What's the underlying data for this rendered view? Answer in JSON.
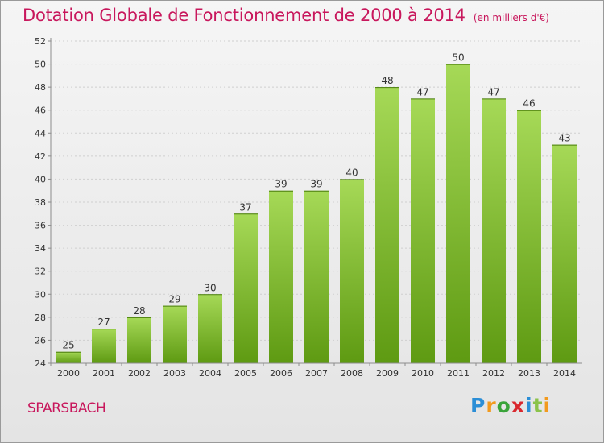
{
  "header": {
    "title": "Dotation Globale de Fonctionnement de 2000 à 2014",
    "subtitle": "(en milliers d'€)"
  },
  "commune": "SPARSBACH",
  "logo": {
    "text": "Proxiti",
    "letters": [
      {
        "char": "P",
        "color": "#2b8ed6"
      },
      {
        "char": "r",
        "color": "#f29a1d"
      },
      {
        "char": "o",
        "color": "#3aa43a"
      },
      {
        "char": "x",
        "color": "#d9272e"
      },
      {
        "char": "i",
        "color": "#2b8ed6"
      },
      {
        "char": "t",
        "color": "#8bc34a"
      },
      {
        "char": "i",
        "color": "#f29a1d"
      }
    ]
  },
  "colors": {
    "accent": "#c8175c",
    "bar_top": "#a6d957",
    "bar_bottom": "#5e9a12",
    "grid": "#cfcfcf",
    "axis": "#8c8c8c",
    "text": "#333333"
  },
  "chart_data": {
    "type": "bar",
    "title": "Dotation Globale de Fonctionnement de 2000 à 2014",
    "subtitle": "(en milliers d'€)",
    "xlabel": "",
    "ylabel": "",
    "categories": [
      "2000",
      "2001",
      "2002",
      "2003",
      "2004",
      "2005",
      "2006",
      "2007",
      "2008",
      "2009",
      "2010",
      "2011",
      "2012",
      "2013",
      "2014"
    ],
    "values": [
      25,
      27,
      28,
      29,
      30,
      37,
      39,
      39,
      40,
      48,
      47,
      50,
      47,
      46,
      43
    ],
    "ylim": [
      24,
      52
    ],
    "yticks": [
      24,
      26,
      28,
      30,
      32,
      34,
      36,
      38,
      40,
      42,
      44,
      46,
      48,
      50,
      52
    ],
    "grid": true,
    "legend": "none"
  }
}
